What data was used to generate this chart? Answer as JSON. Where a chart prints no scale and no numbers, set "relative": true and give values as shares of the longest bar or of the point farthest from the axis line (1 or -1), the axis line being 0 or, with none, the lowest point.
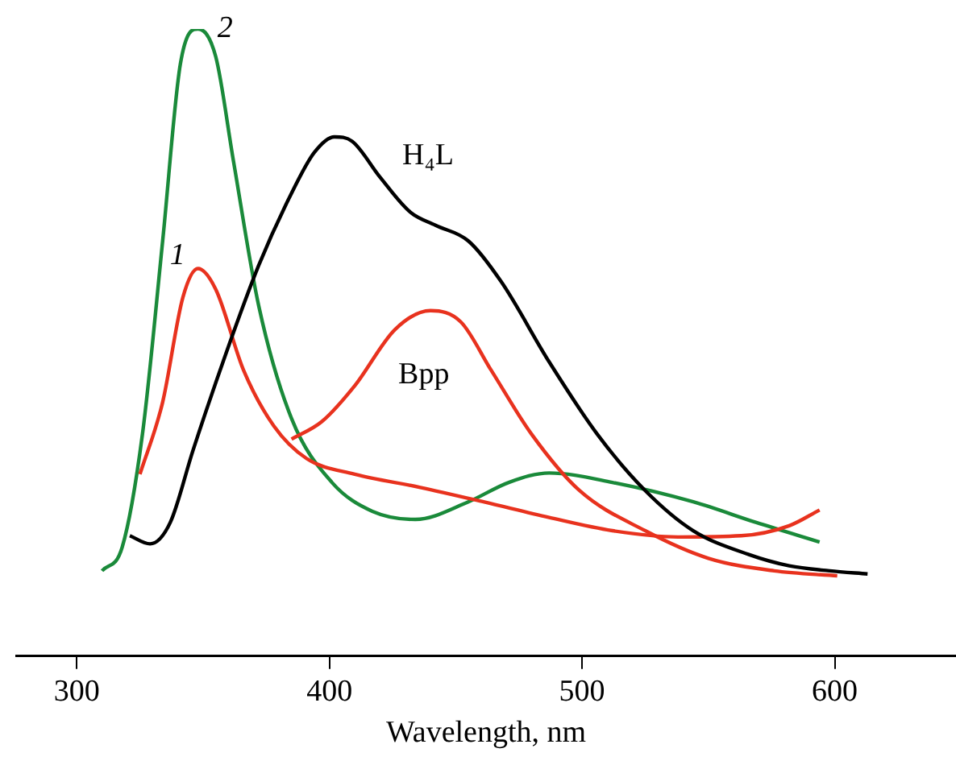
{
  "chart_data": {
    "type": "line",
    "relative": true,
    "xlabel": "Wavelength, nm",
    "xlim": [
      276,
      648
    ],
    "xticks": [
      300,
      400,
      500,
      600
    ],
    "grid": false,
    "legend": false,
    "marker": "none",
    "line_style": "solid",
    "series": [
      {
        "name": "H₄L",
        "color": "#000000",
        "x": [
          321,
          329,
          337,
          346,
          359,
          372,
          385,
          394,
          402,
          409,
          420,
          432,
          442,
          455,
          468,
          487,
          506,
          525,
          544,
          566,
          582,
          598,
          613
        ],
        "values": [
          0.192,
          0.179,
          0.213,
          0.328,
          0.482,
          0.623,
          0.738,
          0.803,
          0.828,
          0.821,
          0.764,
          0.708,
          0.687,
          0.662,
          0.597,
          0.469,
          0.354,
          0.264,
          0.2,
          0.162,
          0.144,
          0.136,
          0.131
        ]
      },
      {
        "name": "Bpp",
        "color": "#e8321e",
        "x": [
          385,
          397,
          410,
          426,
          440,
          452,
          464,
          480,
          499,
          525,
          550,
          576,
          601
        ],
        "values": [
          0.346,
          0.374,
          0.431,
          0.521,
          0.551,
          0.533,
          0.456,
          0.354,
          0.264,
          0.2,
          0.156,
          0.136,
          0.128
        ]
      },
      {
        "name": "1",
        "color": "#e8321e",
        "x": [
          325,
          334,
          342,
          348,
          355,
          366,
          378,
          391,
          410,
          436,
          461,
          487,
          512,
          538,
          563,
          582,
          594
        ],
        "values": [
          0.29,
          0.405,
          0.572,
          0.618,
          0.585,
          0.456,
          0.367,
          0.315,
          0.29,
          0.269,
          0.246,
          0.221,
          0.2,
          0.19,
          0.192,
          0.208,
          0.233
        ]
      },
      {
        "name": "2",
        "color": "#1a8a3a",
        "x": [
          310,
          318,
          326,
          334,
          341,
          348,
          355,
          362,
          372,
          385,
          401,
          417,
          434,
          455,
          471,
          487,
          512,
          544,
          569,
          594
        ],
        "values": [
          0.136,
          0.174,
          0.354,
          0.662,
          0.944,
          1.0,
          0.956,
          0.79,
          0.559,
          0.379,
          0.277,
          0.231,
          0.218,
          0.246,
          0.277,
          0.292,
          0.277,
          0.246,
          0.213,
          0.182
        ]
      }
    ]
  }
}
